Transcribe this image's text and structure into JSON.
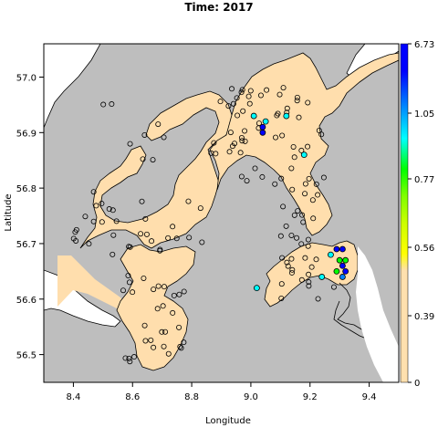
{
  "chart_data": {
    "type": "scatter",
    "title": "Time: 2017",
    "xlabel": "Longitude",
    "ylabel": "Latitude",
    "xlim": [
      8.3,
      9.5
    ],
    "ylim": [
      56.45,
      57.06
    ],
    "xticks": [
      "8.4",
      "8.6",
      "8.8",
      "9.0",
      "9.2",
      "9.4"
    ],
    "yticks": [
      "56.5",
      "56.6",
      "56.7",
      "56.8",
      "56.9",
      "57.0"
    ],
    "colorbar": {
      "labels": [
        "0",
        "0.39",
        "0.56",
        "0.77",
        "1.05",
        "6.73"
      ],
      "colors": [
        "#FFE0AE",
        "#FFFF00",
        "#00FF00",
        "#00FFFF",
        "#0080FF",
        "#0000FF"
      ]
    },
    "colors": {
      "land": "#BEBEBE",
      "water": "#FFDEAD",
      "sea": "#FFFFFF",
      "outline": "#000000"
    },
    "highlighted_points": [
      {
        "x": 9.04,
        "y": 56.91,
        "level": "6.73"
      },
      {
        "x": 9.04,
        "y": 56.9,
        "level": "6.73"
      },
      {
        "x": 9.29,
        "y": 56.69,
        "level": "6.73"
      },
      {
        "x": 9.31,
        "y": 56.69,
        "level": "6.73"
      },
      {
        "x": 9.31,
        "y": 56.66,
        "level": "6.73"
      },
      {
        "x": 9.32,
        "y": 56.65,
        "level": "6.73"
      },
      {
        "x": 9.31,
        "y": 56.64,
        "level": "1.05"
      },
      {
        "x": 9.05,
        "y": 56.92,
        "level": "0.77"
      },
      {
        "x": 9.01,
        "y": 56.93,
        "level": "0.77"
      },
      {
        "x": 9.18,
        "y": 56.86,
        "level": "0.77"
      },
      {
        "x": 9.12,
        "y": 56.93,
        "level": "0.77"
      },
      {
        "x": 9.02,
        "y": 56.62,
        "level": "0.77"
      },
      {
        "x": 9.24,
        "y": 56.64,
        "level": "0.77"
      },
      {
        "x": 9.27,
        "y": 56.68,
        "level": "0.77"
      },
      {
        "x": 9.3,
        "y": 56.67,
        "level": "0.56"
      },
      {
        "x": 9.32,
        "y": 56.67,
        "level": "0.56"
      },
      {
        "x": 9.29,
        "y": 56.65,
        "level": "0.56"
      }
    ]
  }
}
